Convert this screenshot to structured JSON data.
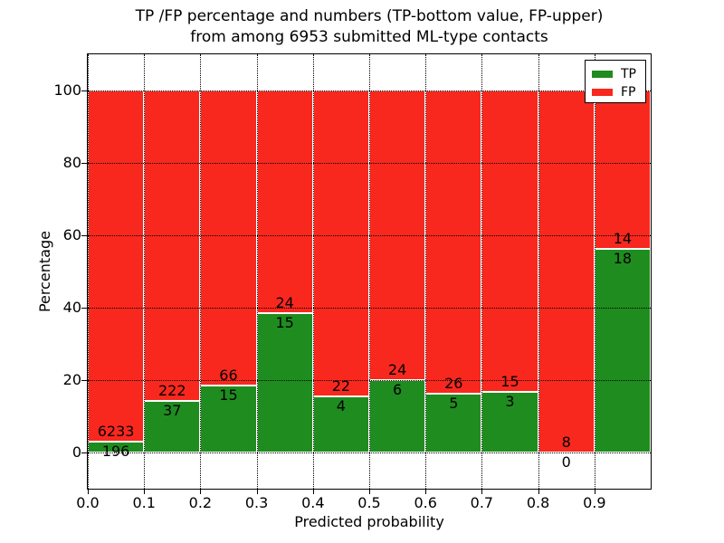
{
  "chart_data": {
    "type": "bar",
    "stacked": true,
    "normalized_to_percent": true,
    "title_lines": [
      "TP /FP percentage and numbers (TP-bottom value, FP-upper)",
      "from among 6953 submitted ML-type contacts"
    ],
    "total_submitted": 6953,
    "xlabel": "Predicted probability",
    "ylabel": "Percentage",
    "xlim": [
      0.0,
      1.0
    ],
    "ylim": [
      -10,
      110
    ],
    "grid": "dotted",
    "xticks": [
      0.0,
      0.1,
      0.2,
      0.3,
      0.4,
      0.5,
      0.6,
      0.7,
      0.8,
      0.9
    ],
    "xtick_labels": [
      "0.0",
      "0.1",
      "0.2",
      "0.3",
      "0.4",
      "0.5",
      "0.6",
      "0.7",
      "0.8",
      "0.9"
    ],
    "yticks": [
      0,
      20,
      40,
      60,
      80,
      100
    ],
    "ytick_labels": [
      "0",
      "20",
      "40",
      "60",
      "80",
      "100"
    ],
    "bin_edges": [
      0.0,
      0.1,
      0.2,
      0.3,
      0.4,
      0.5,
      0.6,
      0.7,
      0.8,
      0.9,
      1.0
    ],
    "bins": [
      {
        "range": [
          0.0,
          0.1
        ],
        "tp": 196,
        "fp": 6233,
        "tp_pct": 3.05
      },
      {
        "range": [
          0.1,
          0.2
        ],
        "tp": 37,
        "fp": 222,
        "tp_pct": 14.29
      },
      {
        "range": [
          0.2,
          0.3
        ],
        "tp": 15,
        "fp": 66,
        "tp_pct": 18.52
      },
      {
        "range": [
          0.3,
          0.4
        ],
        "tp": 15,
        "fp": 24,
        "tp_pct": 38.46
      },
      {
        "range": [
          0.4,
          0.5
        ],
        "tp": 4,
        "fp": 22,
        "tp_pct": 15.38
      },
      {
        "range": [
          0.5,
          0.6
        ],
        "tp": 6,
        "fp": 24,
        "tp_pct": 20.0
      },
      {
        "range": [
          0.6,
          0.7
        ],
        "tp": 5,
        "fp": 26,
        "tp_pct": 16.13
      },
      {
        "range": [
          0.7,
          0.8
        ],
        "tp": 3,
        "fp": 15,
        "tp_pct": 16.67
      },
      {
        "range": [
          0.8,
          0.9
        ],
        "tp": 0,
        "fp": 8,
        "tp_pct": 0.0
      },
      {
        "range": [
          0.9,
          1.0
        ],
        "tp": 18,
        "fp": 14,
        "tp_pct": 56.25
      }
    ],
    "series": [
      {
        "name": "TP",
        "color": "#1f8c1f",
        "counts": [
          196,
          37,
          15,
          15,
          4,
          6,
          5,
          3,
          0,
          18
        ]
      },
      {
        "name": "FP",
        "color": "#f8281e",
        "counts": [
          6233,
          222,
          66,
          24,
          22,
          24,
          26,
          15,
          8,
          14
        ]
      }
    ],
    "legend": {
      "position": "upper right",
      "entries": [
        {
          "label": "TP",
          "color": "#1f8c1f"
        },
        {
          "label": "FP",
          "color": "#f8281e"
        }
      ]
    }
  }
}
